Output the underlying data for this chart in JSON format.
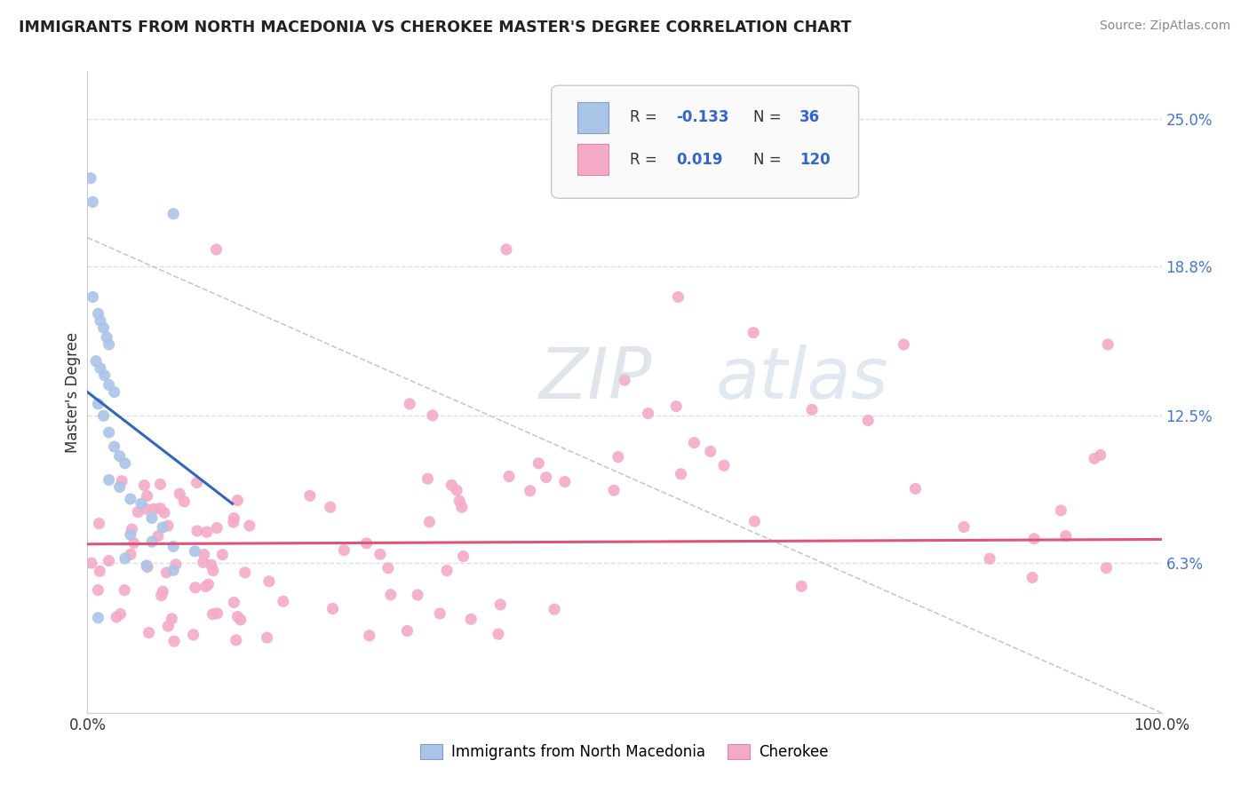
{
  "title": "IMMIGRANTS FROM NORTH MACEDONIA VS CHEROKEE MASTER'S DEGREE CORRELATION CHART",
  "source_text": "Source: ZipAtlas.com",
  "ylabel": "Master's Degree",
  "xlim": [
    0.0,
    1.0
  ],
  "ylim": [
    0.0,
    0.27
  ],
  "x_tick_labels": [
    "0.0%",
    "100.0%"
  ],
  "y_tick_vals_right": [
    0.063,
    0.125,
    0.188,
    0.25
  ],
  "y_tick_labels_right": [
    "6.3%",
    "12.5%",
    "18.8%",
    "25.0%"
  ],
  "watermark": "ZIPatlas",
  "legend_R1": "-0.133",
  "legend_N1": "36",
  "legend_R2": "0.019",
  "legend_N2": "120",
  "blue_color": "#aac4e8",
  "pink_color": "#f4aac8",
  "blue_line_color": "#3366bb",
  "pink_line_color": "#dd5577",
  "trend_line_color": "#bbbbbb",
  "background_color": "#ffffff",
  "grid_color": "#e0e0e0",
  "text_color": "#333333",
  "blue_label": "Immigrants from North Macedonia",
  "pink_label": "Cherokee",
  "blue_line_x0": 0.0,
  "blue_line_y0": 0.135,
  "blue_line_x1": 0.135,
  "blue_line_y1": 0.088,
  "pink_line_x0": 0.0,
  "pink_line_x1": 1.0,
  "pink_line_y0": 0.071,
  "pink_line_y1": 0.073,
  "dash_line_x0": 0.0,
  "dash_line_y0": 0.2,
  "dash_line_x1": 1.0,
  "dash_line_y1": 0.0
}
